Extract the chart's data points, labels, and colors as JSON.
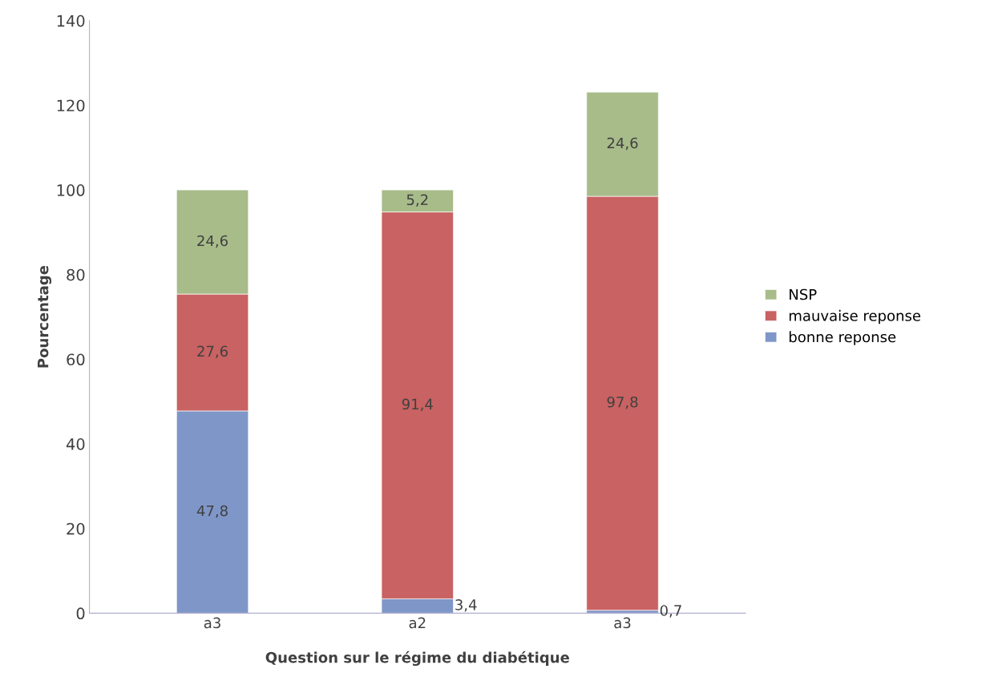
{
  "chart_data": {
    "type": "bar",
    "stacked": true,
    "xlabel": "Question sur le régime du diabétique",
    "ylabel": "Pourcentage",
    "categories": [
      "a3",
      "a2",
      "a3"
    ],
    "series": [
      {
        "name": "bonne reponse",
        "color": "#7f96c8",
        "values": [
          47.8,
          3.4,
          0.7
        ],
        "value_labels": [
          "47,8",
          "3,4",
          "0,7"
        ]
      },
      {
        "name": "mauvaise reponse",
        "color": "#c96262",
        "values": [
          27.6,
          91.4,
          97.8
        ],
        "value_labels": [
          "27,6",
          "91,4",
          "97,8"
        ]
      },
      {
        "name": "NSP",
        "color": "#a8bc8a",
        "values": [
          24.6,
          5.2,
          24.6
        ],
        "value_labels": [
          "24,6",
          "5,2",
          "24,6"
        ]
      }
    ],
    "ylim": [
      0,
      140
    ],
    "yticks": [
      0,
      20,
      40,
      60,
      80,
      100,
      120,
      140
    ],
    "grid": false,
    "legend": "right"
  }
}
